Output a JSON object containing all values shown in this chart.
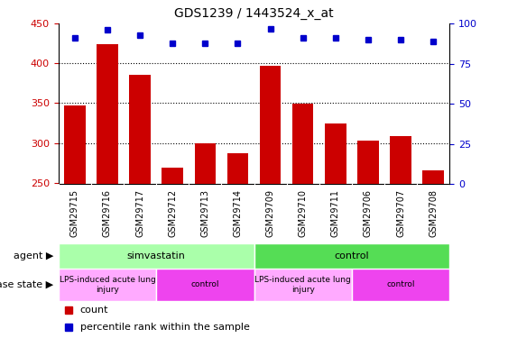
{
  "title": "GDS1239 / 1443524_x_at",
  "samples": [
    "GSM29715",
    "GSM29716",
    "GSM29717",
    "GSM29712",
    "GSM29713",
    "GSM29714",
    "GSM29709",
    "GSM29710",
    "GSM29711",
    "GSM29706",
    "GSM29707",
    "GSM29708"
  ],
  "counts": [
    347,
    424,
    386,
    269,
    300,
    287,
    397,
    349,
    324,
    303,
    308,
    265
  ],
  "percentiles": [
    91,
    96,
    93,
    88,
    88,
    88,
    97,
    91,
    91,
    90,
    90,
    89
  ],
  "ylim_left": [
    248,
    450
  ],
  "ylim_right": [
    0,
    100
  ],
  "yticks_left": [
    250,
    300,
    350,
    400,
    450
  ],
  "yticks_right": [
    0,
    25,
    50,
    75,
    100
  ],
  "bar_color": "#cc0000",
  "scatter_color": "#0000cc",
  "agent_groups": [
    {
      "label": "simvastatin",
      "start": 0,
      "end": 6,
      "color": "#aaffaa"
    },
    {
      "label": "control",
      "start": 6,
      "end": 12,
      "color": "#66ee66"
    }
  ],
  "disease_groups": [
    {
      "label": "LPS-induced acute lung\ninjury",
      "start": 0,
      "end": 3,
      "color": "#ffaaff"
    },
    {
      "label": "control",
      "start": 3,
      "end": 6,
      "color": "#ee55ee"
    },
    {
      "label": "LPS-induced acute lung\ninjury",
      "start": 6,
      "end": 9,
      "color": "#ffaaff"
    },
    {
      "label": "control",
      "start": 9,
      "end": 12,
      "color": "#ee55ee"
    }
  ],
  "ylabel_left_color": "#cc0000",
  "ylabel_right_color": "#0000cc",
  "grid_color": "#000000",
  "tick_area_bg": "#cccccc",
  "agent_light_color": "#aaffaa",
  "agent_dark_color": "#55dd55"
}
